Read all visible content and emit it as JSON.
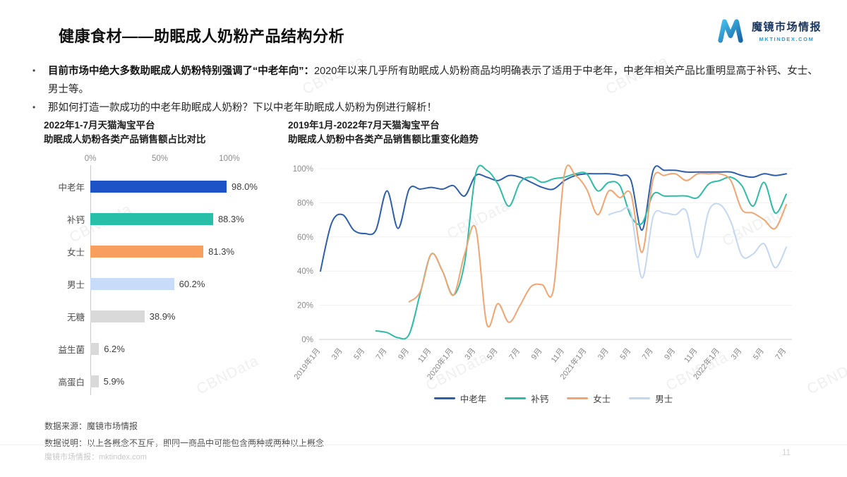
{
  "header": {
    "title": "健康食材——助眠成人奶粉产品结构分析",
    "logo": {
      "name": "魔镜市场情报",
      "site": "MKTINDEX.COM"
    }
  },
  "bullet_marker": "•",
  "bullets": [
    {
      "bold": "目前市场中绝大多数助眠成人奶粉特别强调了“中老年向”：",
      "rest": "2020年以来几乎所有助眠成人奶粉商品均明确表示了适用于中老年，中老年相关产品比重明显高于补钙、女士、男士等。"
    },
    {
      "bold": "",
      "rest": "那如何打造一款成功的中老年助眠成人奶粉？下以中老年助眠成人奶粉为例进行解析！"
    }
  ],
  "chart_data": [
    {
      "type": "bar",
      "title_line1": "2022年1-7月天猫淘宝平台",
      "title_line2": "助眠成人奶粉各类产品销售额占比对比",
      "orientation": "horizontal",
      "x_ticks": [
        "0%",
        "50%",
        "100%"
      ],
      "xlim": [
        0,
        100
      ],
      "categories": [
        "中老年",
        "补钙",
        "女士",
        "男士",
        "无糖",
        "益生菌",
        "高蛋白"
      ],
      "values": [
        98.0,
        88.3,
        81.3,
        60.2,
        38.9,
        6.2,
        5.9
      ],
      "value_labels": [
        "98.0%",
        "88.3%",
        "81.3%",
        "60.2%",
        "38.9%",
        "6.2%",
        "5.9%"
      ],
      "colors": [
        "#1d53c6",
        "#28bfa8",
        "#f89e5f",
        "#c8dbf8",
        "#d9d9d9",
        "#d9d9d9",
        "#d9d9d9"
      ]
    },
    {
      "type": "line",
      "title_line1": "2019年1月-2022年7月天猫淘宝平台",
      "title_line2": "助眠成人奶粉中各类产品销售额比重变化趋势",
      "y_ticks": [
        "0%",
        "20%",
        "40%",
        "60%",
        "80%",
        "100%"
      ],
      "ylim": [
        0,
        100
      ],
      "x_range": "2019-01 到 2022-07（每月一点，共43个月）",
      "x_tick_labels": [
        "2019年1月",
        "3月",
        "5月",
        "7月",
        "9月",
        "11月",
        "2020年1月",
        "3月",
        "5月",
        "7月",
        "9月",
        "11月",
        "2021年1月",
        "3月",
        "5月",
        "7月",
        "9月",
        "11月",
        "2022年1月",
        "3月",
        "5月",
        "7月"
      ],
      "legend_position": "bottom",
      "grid": true,
      "series": [
        {
          "name": "中老年",
          "color": "#2d5fad",
          "values": [
            40,
            68,
            73,
            64,
            62,
            64,
            87,
            65,
            88,
            88,
            89,
            88,
            90,
            84,
            96,
            95,
            93,
            96,
            95,
            92,
            89,
            88,
            93,
            96,
            97,
            97,
            97,
            96,
            93,
            64,
            99,
            99,
            99,
            98,
            98,
            98,
            98,
            98,
            96,
            95,
            97,
            96,
            97
          ]
        },
        {
          "name": "补钙",
          "color": "#2ebca6",
          "values": [
            null,
            null,
            null,
            null,
            null,
            5,
            4,
            1,
            3,
            27,
            50,
            40,
            26,
            45,
            97,
            99,
            91,
            78,
            92,
            95,
            92,
            94,
            95,
            97,
            97,
            87,
            92,
            90,
            72,
            68,
            85,
            84,
            84,
            84,
            83,
            91,
            93,
            95,
            90,
            78,
            92,
            74,
            85
          ]
        },
        {
          "name": "女士",
          "color": "#f2a470",
          "values": [
            null,
            null,
            null,
            null,
            null,
            null,
            null,
            null,
            22,
            28,
            50,
            40,
            26,
            50,
            65,
            9,
            21,
            10,
            20,
            31,
            32,
            29,
            97,
            96,
            88,
            73,
            87,
            83,
            85,
            51,
            94,
            96,
            97,
            93,
            97,
            97,
            97,
            93,
            76,
            74,
            70,
            65,
            79
          ]
        },
        {
          "name": "男士",
          "color": "#c4d7f2",
          "values": [
            null,
            null,
            null,
            null,
            null,
            null,
            null,
            null,
            null,
            null,
            null,
            null,
            null,
            null,
            null,
            null,
            null,
            null,
            null,
            null,
            null,
            null,
            null,
            null,
            null,
            null,
            73,
            75,
            74,
            36,
            72,
            74,
            73,
            75,
            48,
            75,
            79,
            69,
            49,
            50,
            56,
            42,
            54
          ]
        }
      ]
    }
  ],
  "notes": {
    "source": "数据来源：魔镜市场情报",
    "remark": "数据说明：以上各概念不互斥，即同一商品中可能包含两种或两种以上概念"
  },
  "footer": {
    "site": "魔镜市场情报：mktindex.com",
    "page": "11"
  },
  "watermark": "CBNData"
}
